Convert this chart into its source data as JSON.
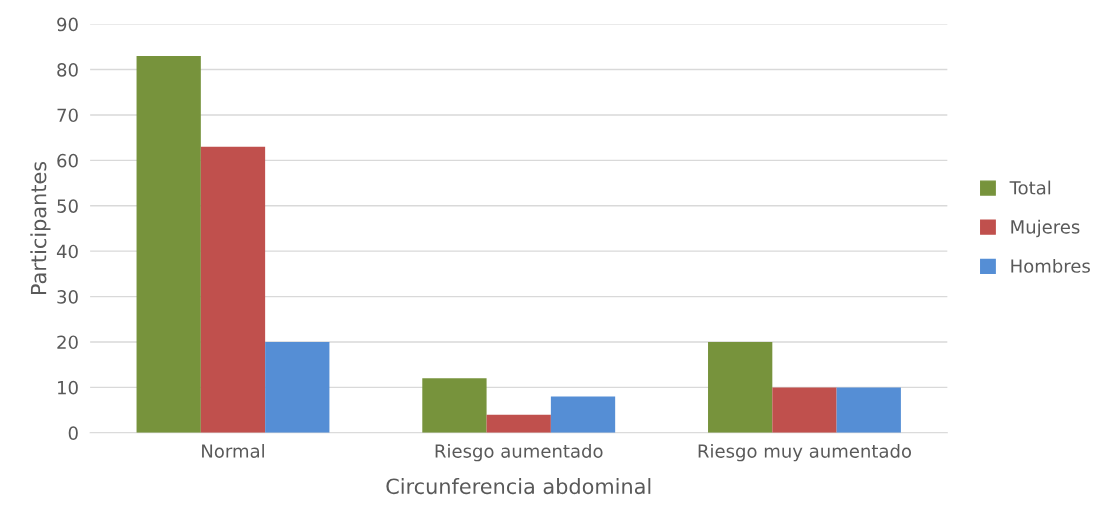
{
  "chart_data": {
    "type": "bar",
    "xlabel": "Circunferencia abdominal",
    "ylabel": "Participantes",
    "categories": [
      "Normal",
      "Riesgo aumentado",
      "Riesgo muy aumentado"
    ],
    "series": [
      {
        "name": "Total",
        "color": "#77933c",
        "values": [
          83,
          12,
          20
        ]
      },
      {
        "name": "Mujeres",
        "color": "#c0504d",
        "values": [
          63,
          4,
          10
        ]
      },
      {
        "name": "Hombres",
        "color": "#558ed5",
        "values": [
          20,
          8,
          10
        ]
      }
    ],
    "ylim": [
      0,
      90
    ],
    "yticks": [
      0,
      10,
      20,
      30,
      40,
      50,
      60,
      70,
      80,
      90
    ],
    "grid": "y",
    "legend": "right"
  }
}
